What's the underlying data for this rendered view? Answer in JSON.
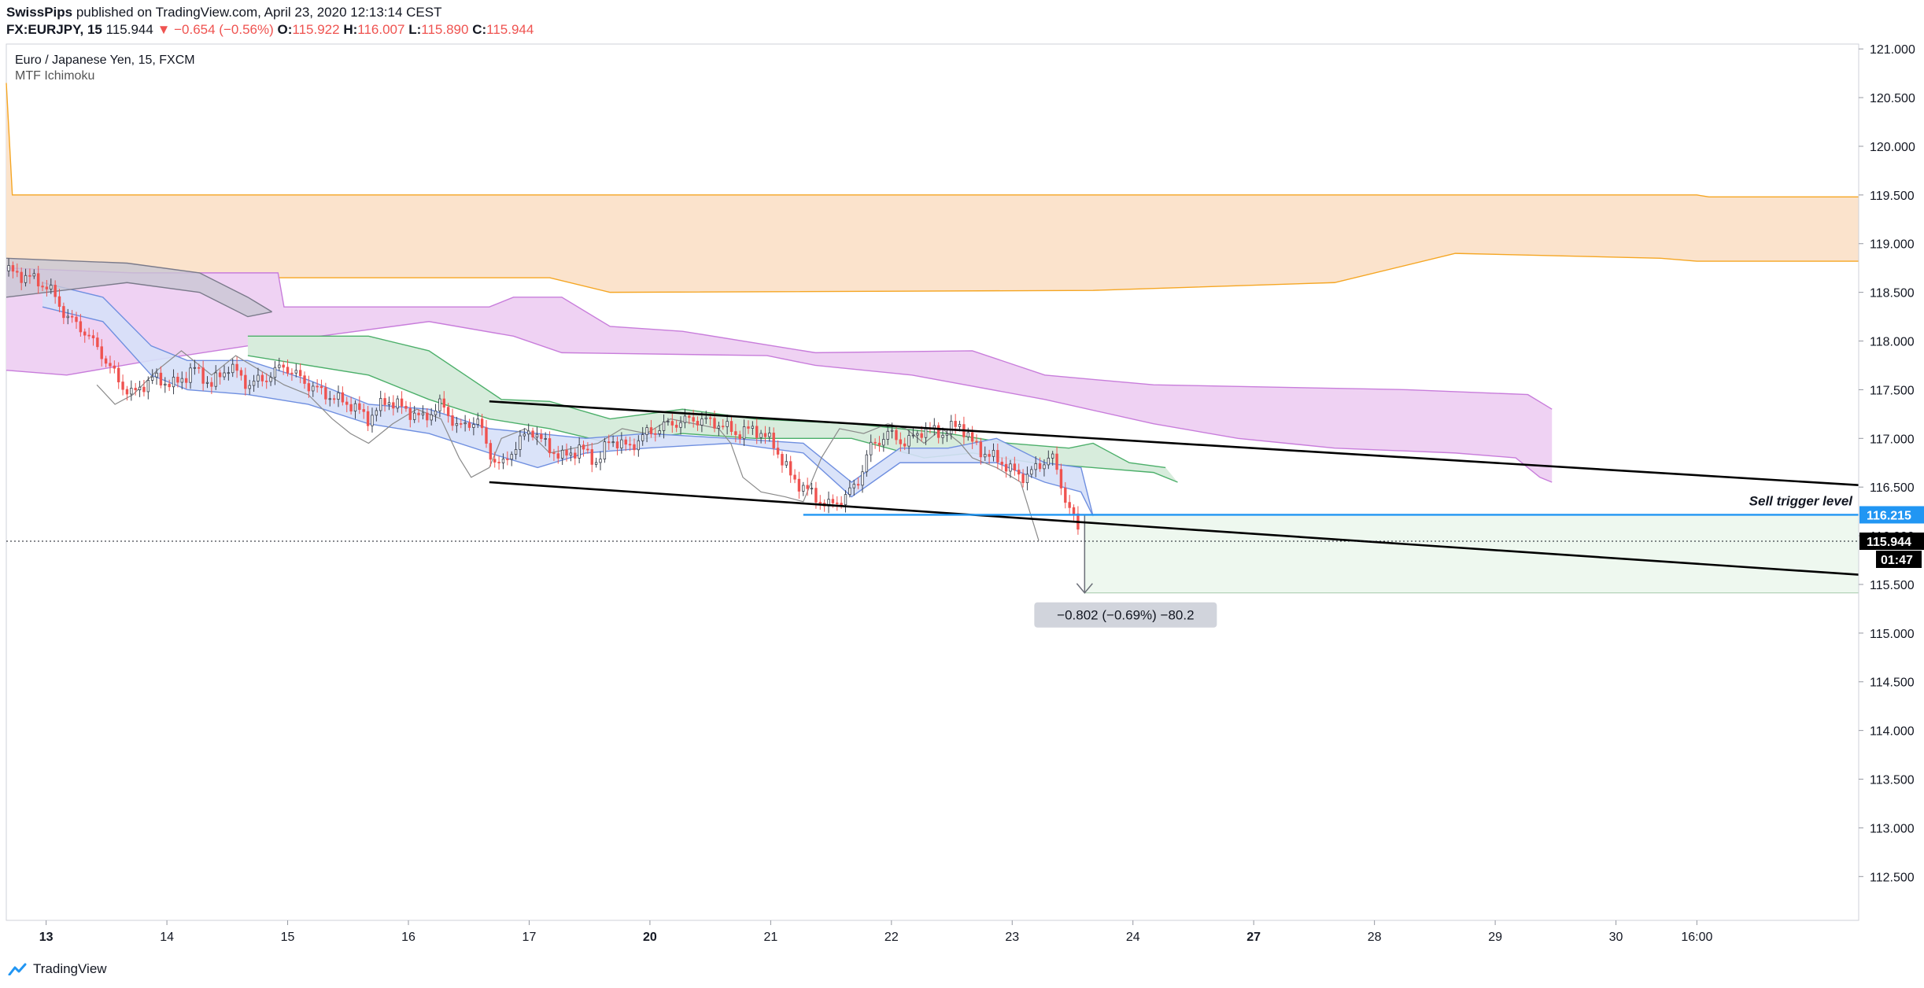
{
  "header": {
    "author": "SwissPips",
    "published": "published on TradingView.com, April 23, 2020 12:13:14 CEST",
    "symbol": "FX:EURJPY, 15",
    "last": "115.944",
    "change": "▼ −0.654 (−0.56%)",
    "o_label": "O:",
    "o_value": "115.922",
    "h_label": "H:",
    "h_value": "116.007",
    "l_label": "L:",
    "l_value": "115.890",
    "c_label": "C:",
    "c_value": "115.944"
  },
  "legend": {
    "title": "Euro / Japanese Yen, 15, FXCM",
    "indicator": "MTF Ichimoku"
  },
  "footer": {
    "brand": "TradingView"
  },
  "colors": {
    "up": "#26a69a",
    "down": "#ef5350",
    "orange": "#f5a623",
    "purple": "#c87ddb",
    "green_cloud": "#4caf6a",
    "blue_cloud": "#6f8fe0",
    "gray_cloud": "#7a7a8a",
    "trigger": "#2196f3",
    "box": "#e8f5e9"
  },
  "chart_data": {
    "type": "candlestick",
    "title": "",
    "ylim": [
      112.05,
      121.05
    ],
    "y_ticks": [
      "112.500",
      "113.000",
      "113.500",
      "114.000",
      "114.500",
      "115.000",
      "115.500",
      "116.000",
      "116.500",
      "117.000",
      "117.500",
      "118.000",
      "118.500",
      "119.000",
      "119.500",
      "120.000",
      "120.500",
      "121.000"
    ],
    "x_ticks": [
      {
        "label": "13",
        "bold": true,
        "t": 0.33
      },
      {
        "label": "14",
        "bold": false,
        "t": 1.33
      },
      {
        "label": "15",
        "bold": false,
        "t": 2.33
      },
      {
        "label": "16",
        "bold": false,
        "t": 3.33
      },
      {
        "label": "17",
        "bold": false,
        "t": 4.33
      },
      {
        "label": "20",
        "bold": true,
        "t": 5.33
      },
      {
        "label": "21",
        "bold": false,
        "t": 6.33
      },
      {
        "label": "22",
        "bold": false,
        "t": 7.33
      },
      {
        "label": "23",
        "bold": false,
        "t": 8.33
      },
      {
        "label": "24",
        "bold": false,
        "t": 9.33
      },
      {
        "label": "27",
        "bold": true,
        "t": 10.33
      },
      {
        "label": "28",
        "bold": false,
        "t": 11.33
      },
      {
        "label": "29",
        "bold": false,
        "t": 12.33
      },
      {
        "label": "30",
        "bold": false,
        "t": 13.33
      },
      {
        "label": "16:00",
        "bold": false,
        "t": 14.0
      }
    ],
    "x_range": [
      0,
      15.34
    ],
    "price_path": [
      [
        0.0,
        118.72
      ],
      [
        0.2,
        118.65
      ],
      [
        0.35,
        118.55
      ],
      [
        0.5,
        118.25
      ],
      [
        0.65,
        118.1
      ],
      [
        0.8,
        117.85
      ],
      [
        0.95,
        117.55
      ],
      [
        1.05,
        117.45
      ],
      [
        1.2,
        117.62
      ],
      [
        1.4,
        117.55
      ],
      [
        1.55,
        117.72
      ],
      [
        1.7,
        117.55
      ],
      [
        1.85,
        117.75
      ],
      [
        2.0,
        117.55
      ],
      [
        2.15,
        117.62
      ],
      [
        2.3,
        117.75
      ],
      [
        2.5,
        117.55
      ],
      [
        2.7,
        117.42
      ],
      [
        2.85,
        117.35
      ],
      [
        3.0,
        117.2
      ],
      [
        3.15,
        117.4
      ],
      [
        3.3,
        117.3
      ],
      [
        3.45,
        117.2
      ],
      [
        3.6,
        117.35
      ],
      [
        3.75,
        117.1
      ],
      [
        3.9,
        117.2
      ],
      [
        4.0,
        116.85
      ],
      [
        4.1,
        116.7
      ],
      [
        4.2,
        116.9
      ],
      [
        4.35,
        117.1
      ],
      [
        4.45,
        116.95
      ],
      [
        4.6,
        116.8
      ],
      [
        4.75,
        116.9
      ],
      [
        4.9,
        116.75
      ],
      [
        5.0,
        117.0
      ],
      [
        5.15,
        116.9
      ],
      [
        5.3,
        117.05
      ],
      [
        5.5,
        117.15
      ],
      [
        5.7,
        117.2
      ],
      [
        5.9,
        117.15
      ],
      [
        6.05,
        117.05
      ],
      [
        6.2,
        117.1
      ],
      [
        6.35,
        116.95
      ],
      [
        6.5,
        116.6
      ],
      [
        6.65,
        116.45
      ],
      [
        6.8,
        116.3
      ],
      [
        6.95,
        116.4
      ],
      [
        7.05,
        116.55
      ],
      [
        7.15,
        116.9
      ],
      [
        7.3,
        117.05
      ],
      [
        7.45,
        116.95
      ],
      [
        7.6,
        117.1
      ],
      [
        7.75,
        117.05
      ],
      [
        7.9,
        117.15
      ],
      [
        8.0,
        116.95
      ],
      [
        8.1,
        116.85
      ],
      [
        8.25,
        116.75
      ],
      [
        8.4,
        116.6
      ],
      [
        8.55,
        116.7
      ],
      [
        8.65,
        116.85
      ],
      [
        8.75,
        116.45
      ],
      [
        8.82,
        116.25
      ],
      [
        8.9,
        115.95
      ]
    ],
    "lagging_path": [
      [
        0.75,
        117.55
      ],
      [
        0.9,
        117.35
      ],
      [
        1.05,
        117.45
      ],
      [
        1.25,
        117.7
      ],
      [
        1.45,
        117.9
      ],
      [
        1.7,
        117.65
      ],
      [
        1.9,
        117.85
      ],
      [
        2.1,
        117.7
      ],
      [
        2.3,
        117.55
      ],
      [
        2.5,
        117.45
      ],
      [
        2.7,
        117.2
      ],
      [
        2.85,
        117.05
      ],
      [
        3.0,
        116.95
      ],
      [
        3.2,
        117.15
      ],
      [
        3.4,
        117.3
      ],
      [
        3.6,
        117.2
      ],
      [
        3.75,
        116.8
      ],
      [
        3.85,
        116.6
      ],
      [
        4.0,
        116.7
      ],
      [
        4.1,
        117.0
      ],
      [
        4.3,
        117.1
      ],
      [
        4.5,
        116.85
      ],
      [
        4.7,
        116.9
      ],
      [
        4.9,
        116.95
      ],
      [
        5.1,
        117.1
      ],
      [
        5.3,
        117.05
      ],
      [
        5.5,
        117.2
      ],
      [
        5.7,
        117.15
      ],
      [
        5.9,
        117.1
      ],
      [
        6.0,
        116.95
      ],
      [
        6.1,
        116.6
      ],
      [
        6.25,
        116.45
      ],
      [
        6.45,
        116.4
      ],
      [
        6.6,
        116.35
      ],
      [
        6.75,
        116.8
      ],
      [
        6.9,
        117.1
      ],
      [
        7.1,
        117.05
      ],
      [
        7.3,
        117.15
      ],
      [
        7.45,
        117.1
      ],
      [
        7.6,
        116.95
      ],
      [
        7.75,
        117.1
      ],
      [
        7.9,
        116.95
      ],
      [
        8.0,
        116.8
      ],
      [
        8.2,
        116.7
      ],
      [
        8.4,
        116.55
      ],
      [
        8.55,
        115.95
      ]
    ],
    "bands": [
      {
        "name": "",
        "color": "#f5a623",
        "fill": "#fbe3cc",
        "alpha": 1,
        "upper": [
          [
            0.0,
            120.65
          ],
          [
            0.05,
            119.5
          ],
          [
            14.0,
            119.5
          ],
          [
            14.1,
            119.48
          ],
          [
            15.34,
            119.48
          ]
        ],
        "lower": [
          [
            0.0,
            118.65
          ],
          [
            4.5,
            118.65
          ],
          [
            5.0,
            118.5
          ],
          [
            9.0,
            118.52
          ],
          [
            11.0,
            118.6
          ],
          [
            12.0,
            118.9
          ],
          [
            13.7,
            118.85
          ],
          [
            14.0,
            118.82
          ],
          [
            15.34,
            118.82
          ]
        ]
      },
      {
        "name": "",
        "color": "#c87ddb",
        "fill": "#efd2f3",
        "alpha": 1,
        "upper": [
          [
            0.0,
            118.75
          ],
          [
            1.05,
            118.7
          ],
          [
            2.25,
            118.7
          ],
          [
            2.3,
            118.35
          ],
          [
            4.0,
            118.35
          ],
          [
            4.2,
            118.45
          ],
          [
            4.6,
            118.45
          ],
          [
            5.0,
            118.15
          ],
          [
            5.6,
            118.1
          ],
          [
            6.7,
            117.88
          ],
          [
            8.0,
            117.9
          ],
          [
            8.6,
            117.65
          ],
          [
            9.5,
            117.55
          ],
          [
            11.6,
            117.5
          ],
          [
            12.6,
            117.45
          ],
          [
            12.8,
            117.3
          ]
        ],
        "lower": [
          [
            0.0,
            117.7
          ],
          [
            0.5,
            117.65
          ],
          [
            1.2,
            117.8
          ],
          [
            2.0,
            117.95
          ],
          [
            3.5,
            118.2
          ],
          [
            4.2,
            118.05
          ],
          [
            4.6,
            117.88
          ],
          [
            6.3,
            117.85
          ],
          [
            6.7,
            117.75
          ],
          [
            7.5,
            117.65
          ],
          [
            8.6,
            117.4
          ],
          [
            9.5,
            117.15
          ],
          [
            10.2,
            117.0
          ],
          [
            11.0,
            116.9
          ],
          [
            12.0,
            116.85
          ],
          [
            12.5,
            116.8
          ],
          [
            12.7,
            116.6
          ],
          [
            12.8,
            116.55
          ]
        ]
      },
      {
        "name": "",
        "color": "#4caf6a",
        "fill": "#d7ecdc",
        "alpha": 1,
        "upper": [
          [
            2.0,
            118.05
          ],
          [
            3.0,
            118.05
          ],
          [
            3.5,
            117.9
          ],
          [
            3.8,
            117.65
          ],
          [
            4.1,
            117.4
          ],
          [
            4.5,
            117.38
          ],
          [
            5.0,
            117.2
          ],
          [
            5.6,
            117.3
          ],
          [
            6.2,
            117.2
          ],
          [
            7.0,
            117.15
          ],
          [
            7.8,
            117.05
          ],
          [
            8.3,
            116.95
          ],
          [
            8.8,
            116.9
          ],
          [
            9.0,
            116.95
          ],
          [
            9.3,
            116.75
          ],
          [
            9.6,
            116.7
          ]
        ],
        "lower": [
          [
            2.0,
            117.85
          ],
          [
            3.0,
            117.65
          ],
          [
            3.5,
            117.4
          ],
          [
            4.0,
            117.2
          ],
          [
            4.5,
            117.1
          ],
          [
            5.0,
            116.95
          ],
          [
            5.6,
            117.05
          ],
          [
            6.2,
            117.0
          ],
          [
            7.0,
            117.0
          ],
          [
            7.6,
            116.8
          ],
          [
            8.0,
            116.85
          ],
          [
            8.5,
            116.75
          ],
          [
            9.0,
            116.7
          ],
          [
            9.5,
            116.65
          ],
          [
            9.7,
            116.55
          ]
        ]
      },
      {
        "name": "",
        "color": "#6f8fe0",
        "fill": "#d6e0f8",
        "alpha": 0.9,
        "upper": [
          [
            0.3,
            118.6
          ],
          [
            0.8,
            118.45
          ],
          [
            1.2,
            117.95
          ],
          [
            1.5,
            117.8
          ],
          [
            2.0,
            117.8
          ],
          [
            2.5,
            117.6
          ],
          [
            3.0,
            117.35
          ],
          [
            3.5,
            117.3
          ],
          [
            4.0,
            117.1
          ],
          [
            4.4,
            117.05
          ],
          [
            4.8,
            117.0
          ],
          [
            5.3,
            117.05
          ],
          [
            6.0,
            117.0
          ],
          [
            6.6,
            116.95
          ],
          [
            7.0,
            116.55
          ],
          [
            7.4,
            116.9
          ],
          [
            7.8,
            116.9
          ],
          [
            8.2,
            117.0
          ],
          [
            8.6,
            116.75
          ],
          [
            8.9,
            116.7
          ],
          [
            9.0,
            116.2
          ]
        ],
        "lower": [
          [
            0.3,
            118.35
          ],
          [
            0.8,
            118.2
          ],
          [
            1.2,
            117.65
          ],
          [
            1.5,
            117.5
          ],
          [
            2.0,
            117.45
          ],
          [
            2.5,
            117.35
          ],
          [
            3.0,
            117.15
          ],
          [
            3.5,
            117.05
          ],
          [
            4.0,
            116.85
          ],
          [
            4.4,
            116.7
          ],
          [
            4.8,
            116.85
          ],
          [
            5.3,
            116.9
          ],
          [
            6.0,
            116.95
          ],
          [
            6.6,
            116.85
          ],
          [
            7.0,
            116.4
          ],
          [
            7.4,
            116.75
          ],
          [
            7.8,
            116.75
          ],
          [
            8.2,
            116.75
          ],
          [
            8.6,
            116.55
          ],
          [
            8.9,
            116.45
          ],
          [
            9.0,
            116.2
          ]
        ]
      },
      {
        "name": "",
        "color": "#7a7a8a",
        "fill": "#c9c7d3",
        "alpha": 0.8,
        "upper": [
          [
            0.0,
            118.85
          ],
          [
            1.0,
            118.8
          ],
          [
            1.6,
            118.7
          ],
          [
            2.0,
            118.45
          ],
          [
            2.2,
            118.3
          ]
        ],
        "lower": [
          [
            0.0,
            118.45
          ],
          [
            1.0,
            118.6
          ],
          [
            1.6,
            118.5
          ],
          [
            2.0,
            118.25
          ],
          [
            2.2,
            118.3
          ]
        ]
      }
    ],
    "channel_upper": [
      [
        4.0,
        117.38
      ],
      [
        15.34,
        116.52
      ]
    ],
    "channel_lower": [
      [
        4.0,
        116.55
      ],
      [
        15.34,
        115.6
      ]
    ],
    "sell_trigger": {
      "label": "Sell trigger level",
      "price": 116.215,
      "price_label": "116.215",
      "t_start": 6.6
    },
    "last_price": {
      "price": 115.944,
      "price_label": "115.944",
      "countdown": "01:47"
    },
    "measure_box": {
      "t_start": 8.93,
      "t_end": 15.34,
      "top": 116.215,
      "bottom": 115.413,
      "label": "−0.802 (−0.69%) −80.2"
    }
  }
}
